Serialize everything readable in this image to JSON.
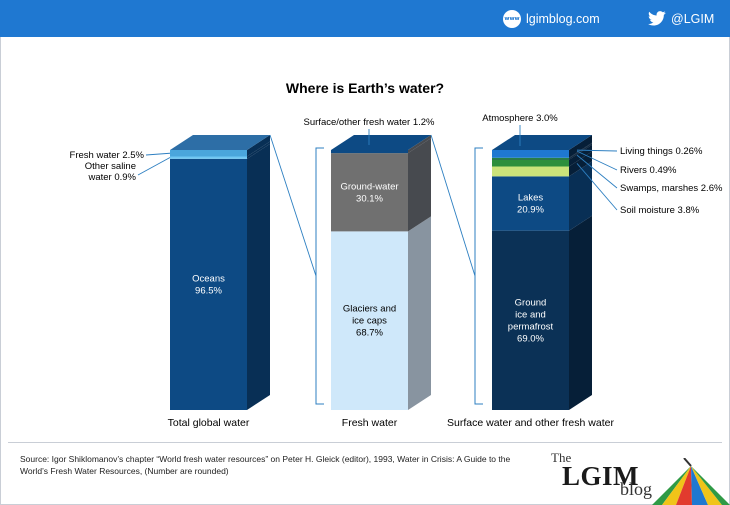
{
  "header": {
    "web_icon": "www-globe-icon",
    "website": "lgimblog.com",
    "twitter_icon": "twitter-bird-icon",
    "twitter_handle": "@LGIM"
  },
  "colors": {
    "topbar": "#1f78d1",
    "ocean_front": "#0d4a84",
    "ocean_side": "#082f55",
    "ocean_top": "#2d6ea6",
    "fresh_front": "#4aa6dc",
    "fresh_top": "#4aa6dc",
    "saline_front": "#6fc7f2",
    "ground_front": "#707070",
    "ground_side": "#474a4f",
    "ground_top": "#0d4a84",
    "glacier_front": "#cfe8fa",
    "glacier_side": "#8894a0",
    "groundice_front": "#0b3156",
    "groundice_side": "#061f38",
    "lakes_front": "#0d4a84",
    "lakes_side": "#082f55",
    "soil_front": "#cbe37a",
    "swamp_front": "#2e8f3c",
    "rivers_front": "#0b5a34",
    "living_front": "#37a24e",
    "atmos_front": "#1f78d1",
    "atmos_top": "#0d4a84",
    "connector": "#2d7fc1"
  },
  "chart_data": {
    "type": "bar",
    "title": "Where is Earth’s water?",
    "stacking": "stacked-100-percent",
    "categories": [
      "Total global water",
      "Fresh water",
      "Surface water and other fresh water"
    ],
    "bars": [
      {
        "category": "Total global water",
        "segments": [
          {
            "name": "Oceans",
            "value": 96.5,
            "label": "Oceans\n96.5%",
            "label_position": "inside"
          },
          {
            "name": "Other saline water",
            "value": 0.9,
            "label": "Other saline\nwater 0.9%",
            "label_position": "outside-left"
          },
          {
            "name": "Fresh water",
            "value": 2.5,
            "label": "Fresh water 2.5%",
            "label_position": "outside-left"
          }
        ]
      },
      {
        "category": "Fresh water",
        "segments": [
          {
            "name": "Glaciers and ice caps",
            "value": 68.7,
            "label": "Glaciers and\nice caps\n68.7%",
            "label_position": "inside"
          },
          {
            "name": "Ground-water",
            "value": 30.1,
            "label": "Ground-water\n30.1%",
            "label_position": "inside"
          },
          {
            "name": "Surface/other fresh water",
            "value": 1.2,
            "label": "Surface/other fresh water 1.2%",
            "label_position": "above"
          }
        ]
      },
      {
        "category": "Surface water and other fresh water",
        "segments": [
          {
            "name": "Ground ice and permafrost",
            "value": 69.0,
            "label": "Ground\nice and\npermafrost\n69.0%",
            "label_position": "inside"
          },
          {
            "name": "Lakes",
            "value": 20.9,
            "label": "Lakes\n20.9%",
            "label_position": "inside"
          },
          {
            "name": "Soil moisture",
            "value": 3.8,
            "label": "Soil moisture 3.8%",
            "label_position": "outside-right"
          },
          {
            "name": "Swamps, marshes",
            "value": 2.6,
            "label": "Swamps, marshes 2.6%",
            "label_position": "outside-right"
          },
          {
            "name": "Rivers",
            "value": 0.49,
            "label": "Rivers  0.49%",
            "label_position": "outside-right"
          },
          {
            "name": "Living things",
            "value": 0.26,
            "label": "Living things 0.26%",
            "label_position": "outside-right"
          },
          {
            "name": "Atmosphere",
            "value": 3.0,
            "label": "Atmosphere 3.0%",
            "label_position": "above"
          }
        ]
      }
    ],
    "grid": false,
    "legend": "none"
  },
  "footer": {
    "source": "Source: Igor Shiklomanov’s chapter “World fresh water resources” on Peter H. Gleick (editor), 1993, Water in Crisis: A Guide to the World’s Fresh Water Resources, (Number are rounded)",
    "logo_the": "The",
    "logo_main": "LGIM",
    "logo_blog": "blog",
    "logo_icon": "umbrella-logo-icon"
  }
}
